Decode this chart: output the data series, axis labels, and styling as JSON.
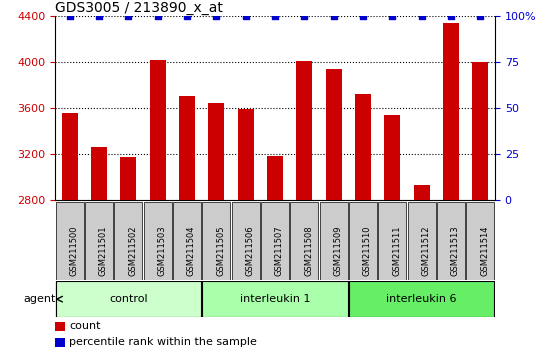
{
  "title": "GDS3005 / 213890_x_at",
  "samples": [
    "GSM211500",
    "GSM211501",
    "GSM211502",
    "GSM211503",
    "GSM211504",
    "GSM211505",
    "GSM211506",
    "GSM211507",
    "GSM211508",
    "GSM211509",
    "GSM211510",
    "GSM211511",
    "GSM211512",
    "GSM211513",
    "GSM211514"
  ],
  "counts": [
    3560,
    3260,
    3170,
    4020,
    3700,
    3640,
    3590,
    3180,
    4010,
    3940,
    3720,
    3540,
    2930,
    4340,
    4000
  ],
  "ylim_left": [
    2800,
    4400
  ],
  "ylim_right": [
    0,
    100
  ],
  "yticks_left": [
    2800,
    3200,
    3600,
    4000,
    4400
  ],
  "yticks_right": [
    0,
    25,
    50,
    75,
    100
  ],
  "groups": [
    {
      "label": "control",
      "start": 0,
      "end": 4,
      "color": "#ccffcc"
    },
    {
      "label": "interleukin 1",
      "start": 5,
      "end": 9,
      "color": "#aaffaa"
    },
    {
      "label": "interleukin 6",
      "start": 10,
      "end": 14,
      "color": "#66ee66"
    }
  ],
  "bar_color": "#cc0000",
  "percentile_color": "#0000cc",
  "agent_label": "agent",
  "legend_count_label": "count",
  "legend_percentile_label": "percentile rank within the sample",
  "sample_box_color": "#cccccc",
  "title_fontsize": 10,
  "tick_fontsize": 8,
  "label_fontsize": 8
}
